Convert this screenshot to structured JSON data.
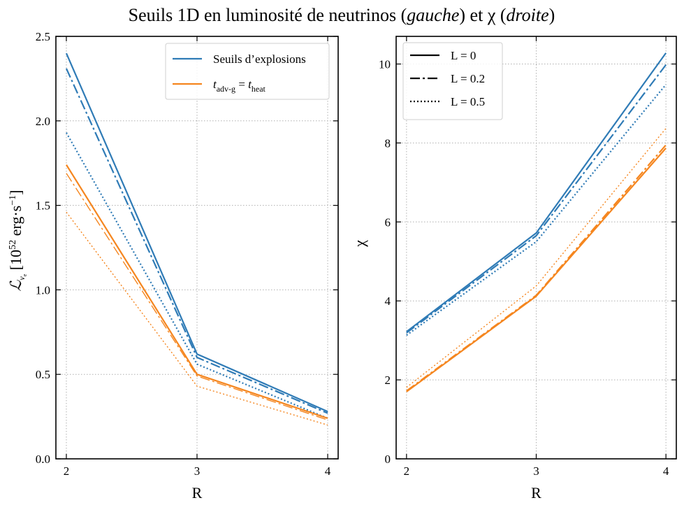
{
  "figure": {
    "title_parts": [
      "Seuils 1D en luminosité de neutrinos (",
      "gauche",
      ") et χ (",
      "droite",
      ")"
    ]
  },
  "colors": {
    "blue": "#2f7bb6",
    "orange": "#f5861f"
  },
  "chart_data": [
    {
      "type": "line",
      "panel": "left",
      "xlabel": "R",
      "ylabel": "ℒ",
      "ylabel_sub": "ν",
      "ylabel_sub2": "e",
      "ylabel_unit_parts": [
        "[10",
        "52",
        " erg·s",
        "−1",
        "]"
      ],
      "x": [
        2,
        3,
        4
      ],
      "xlim": [
        1.92,
        4.08
      ],
      "ylim": [
        0,
        2.5
      ],
      "xticks": [
        2,
        3,
        4
      ],
      "yticks": [
        0.0,
        0.5,
        1.0,
        1.5,
        2.0,
        2.5
      ],
      "ytick_labels": [
        "0.0",
        "0.5",
        "1.0",
        "1.5",
        "2.0",
        "2.5"
      ],
      "grid": true,
      "legend": {
        "placement": "top-right",
        "entries": [
          {
            "color": "#2f7bb6",
            "label": "Seuils d’explosions"
          },
          {
            "color": "#f5861f",
            "label_parts": [
              "t",
              "adv-g",
              " = ",
              "t",
              "heat"
            ]
          }
        ]
      },
      "series": [
        {
          "color": "#2f7bb6",
          "style": "solid",
          "width": 2.2,
          "values": [
            2.4,
            0.62,
            0.28
          ]
        },
        {
          "color": "#2f7bb6",
          "style": "dashdot",
          "width": 2.2,
          "values": [
            2.31,
            0.6,
            0.27
          ]
        },
        {
          "color": "#2f7bb6",
          "style": "dotted",
          "width": 2.2,
          "values": [
            1.93,
            0.56,
            0.24
          ]
        },
        {
          "color": "#f5861f",
          "style": "solid",
          "width": 2.2,
          "values": [
            1.74,
            0.5,
            0.24
          ]
        },
        {
          "color": "#f5861f",
          "style": "dashdot",
          "width": 1.4,
          "values": [
            1.69,
            0.49,
            0.23
          ]
        },
        {
          "color": "#f5861f",
          "style": "dotted",
          "width": 1.4,
          "values": [
            1.46,
            0.43,
            0.2
          ]
        }
      ]
    },
    {
      "type": "line",
      "panel": "right",
      "xlabel": "R",
      "ylabel": "χ",
      "x": [
        2,
        3,
        4
      ],
      "xlim": [
        1.92,
        4.08
      ],
      "ylim": [
        0,
        10.7
      ],
      "xticks": [
        2,
        3,
        4
      ],
      "yticks": [
        0,
        2,
        4,
        6,
        8,
        10
      ],
      "ytick_labels": [
        "0",
        "2",
        "4",
        "6",
        "8",
        "10"
      ],
      "grid": true,
      "legend": {
        "placement": "top-left",
        "entries": [
          {
            "style": "solid",
            "label": "L = 0"
          },
          {
            "style": "dashdot",
            "label": "L = 0.2"
          },
          {
            "style": "dotted",
            "label": "L = 0.5"
          }
        ]
      },
      "series": [
        {
          "color": "#2f7bb6",
          "style": "solid",
          "width": 2.2,
          "values": [
            3.22,
            5.72,
            10.28
          ]
        },
        {
          "color": "#2f7bb6",
          "style": "dashdot",
          "width": 2.2,
          "values": [
            3.19,
            5.65,
            9.98
          ]
        },
        {
          "color": "#2f7bb6",
          "style": "dotted",
          "width": 2.2,
          "values": [
            3.13,
            5.5,
            9.48
          ]
        },
        {
          "color": "#f5861f",
          "style": "solid",
          "width": 2.2,
          "values": [
            1.7,
            4.12,
            7.87
          ]
        },
        {
          "color": "#f5861f",
          "style": "dashdot",
          "width": 2.2,
          "values": [
            1.72,
            4.14,
            7.95
          ]
        },
        {
          "color": "#f5861f",
          "style": "dotted",
          "width": 1.4,
          "values": [
            1.81,
            4.38,
            8.37
          ]
        }
      ]
    }
  ]
}
